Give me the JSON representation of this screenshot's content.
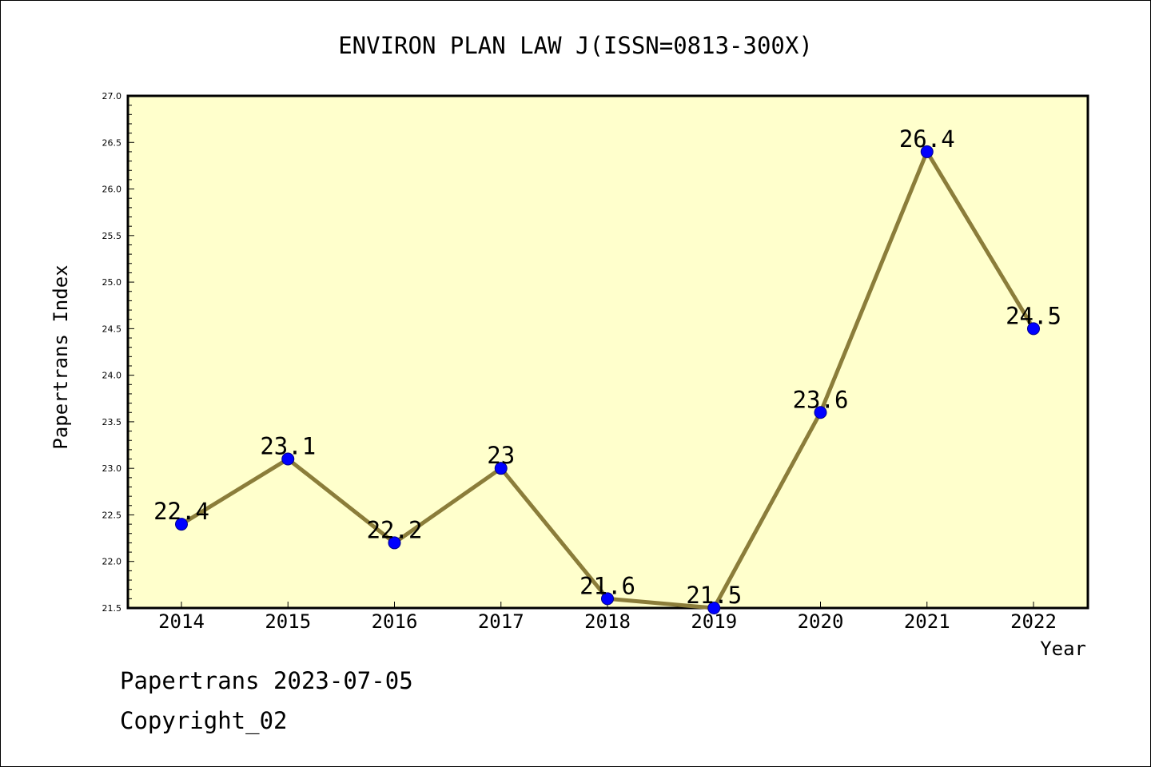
{
  "chart_data": {
    "type": "line",
    "title": "ENVIRON PLAN LAW J(ISSN=0813-300X)",
    "xlabel": "Year",
    "ylabel": "Papertrans Index",
    "categories": [
      "2014",
      "2015",
      "2016",
      "2017",
      "2018",
      "2019",
      "2020",
      "2021",
      "2022"
    ],
    "values": [
      22.4,
      23.1,
      22.2,
      23.0,
      21.6,
      21.5,
      23.6,
      26.4,
      24.5
    ],
    "data_labels": [
      "22.4",
      "23.1",
      "22.2",
      "23",
      "21.6",
      "21.5",
      "23.6",
      "26.4",
      "24.5"
    ],
    "ylim": [
      21.5,
      27.0
    ],
    "yticks": [
      "21.5",
      "22.0",
      "22.5",
      "23.0",
      "23.5",
      "24.0",
      "24.5",
      "25.0",
      "25.5",
      "26.0",
      "26.5",
      "27.0"
    ],
    "grid": false,
    "colors": {
      "plot_background": "#ffffcc",
      "line": "#8b7d3a",
      "marker": "#0000ff",
      "marker_edge": "#00008b"
    }
  },
  "footer": {
    "line1": "Papertrans 2023-07-05",
    "line2": "Copyright_02"
  }
}
